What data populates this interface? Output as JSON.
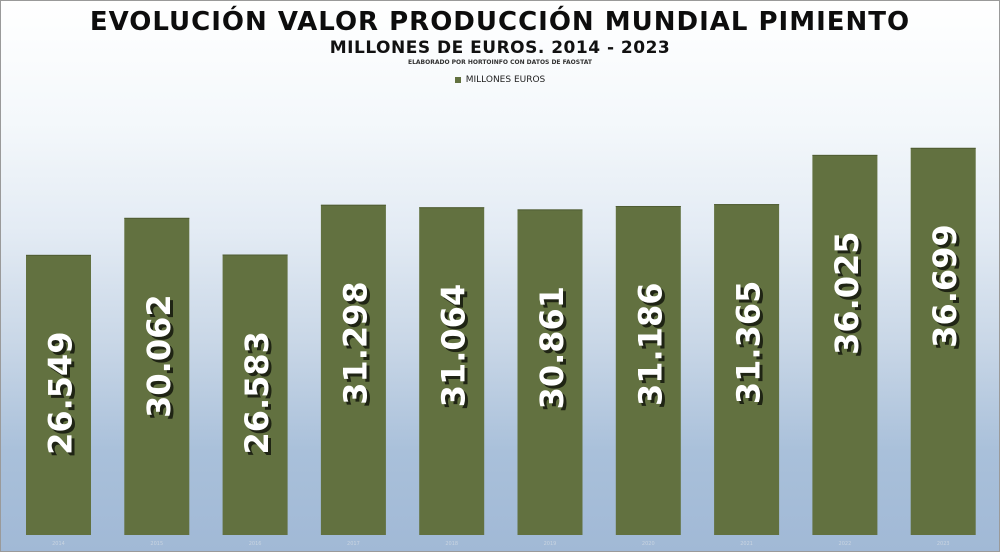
{
  "chart_data": {
    "type": "bar",
    "title": "EVOLUCIÓN VALOR PRODUCCIÓN MUNDIAL PIMIENTO",
    "subtitle": "MILLONES DE EUROS. 2014 - 2023",
    "credit": "ELABORADO POR HORTOINFO CON DATOS DE FAOSTAT",
    "legend_position": "top-center",
    "grid": false,
    "categories": [
      "2014",
      "2015",
      "2016",
      "2017",
      "2018",
      "2019",
      "2020",
      "2021",
      "2022",
      "2023"
    ],
    "series": [
      {
        "name": "MILLONES EUROS",
        "values": [
          26549,
          30062,
          26583,
          31298,
          31064,
          30861,
          31186,
          31365,
          36025,
          36699
        ],
        "data_labels": [
          "26.549",
          "30.062",
          "26.583",
          "31.298",
          "31.064",
          "30.861",
          "31.186",
          "31.365",
          "36.025",
          "36.699"
        ]
      }
    ],
    "xlabel": "",
    "ylabel": "",
    "ylim": [
      0,
      40000
    ],
    "bar_color": "#627140",
    "label_color": "#ffffff",
    "label_shadow_color": "#1f2414"
  }
}
